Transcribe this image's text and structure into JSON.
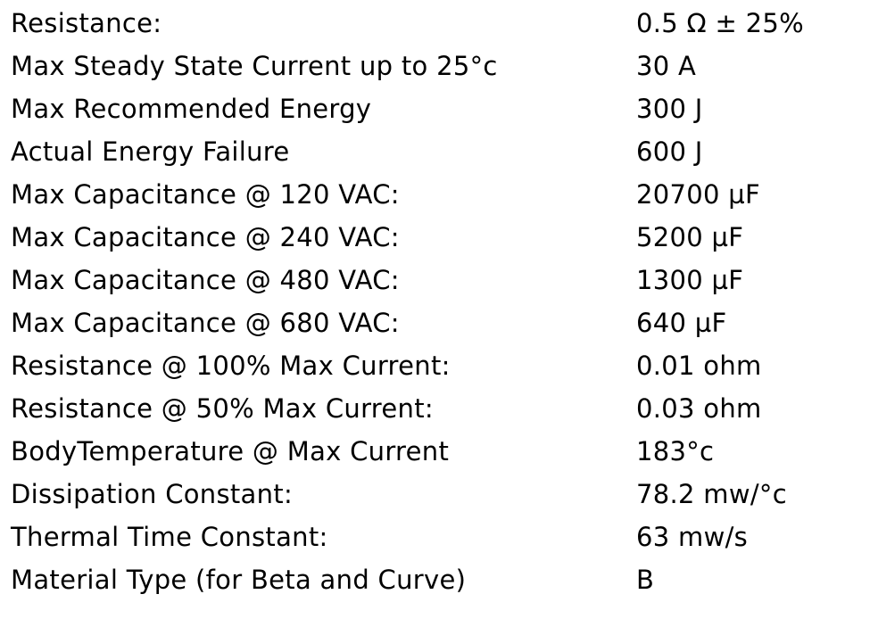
{
  "table": {
    "rows": [
      [
        "Resistance:",
        "0.5 Ω ± 25%"
      ],
      [
        "Max Steady State Current up to 25°c",
        "30 A"
      ],
      [
        "Max Recommended Energy",
        "300 J"
      ],
      [
        "Actual Energy Failure",
        "600 J"
      ],
      [
        "Max Capacitance @ 120 VAC:",
        "20700 µF"
      ],
      [
        "Max Capacitance @ 240 VAC:",
        "5200 µF"
      ],
      [
        "Max Capacitance @ 480 VAC:",
        "1300 µF"
      ],
      [
        "Max Capacitance @ 680 VAC:",
        "640 µF"
      ],
      [
        "Resistance @ 100% Max Current:",
        "0.01 ohm"
      ],
      [
        "Resistance @ 50% Max Current:",
        "0.03 ohm"
      ],
      [
        "BodyTemperature @ Max Current",
        "183°c"
      ],
      [
        "Dissipation Constant:",
        "78.2 mw/°c"
      ],
      [
        "Thermal Time Constant:",
        "63 mw/s"
      ],
      [
        "Material Type (for Beta and Curve)",
        "B"
      ]
    ]
  }
}
